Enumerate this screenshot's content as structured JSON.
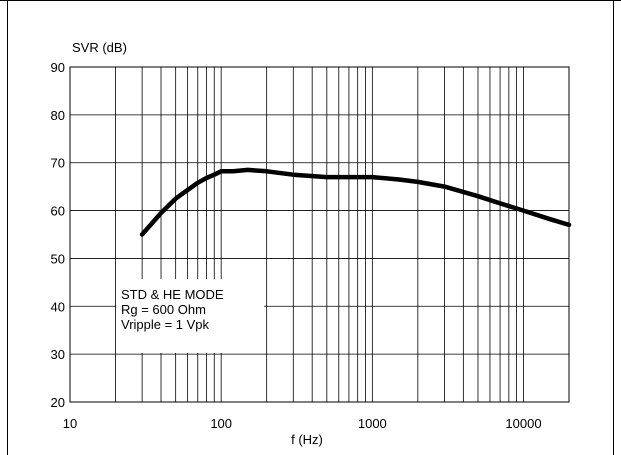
{
  "chart_data": {
    "type": "line",
    "ylabel": "SVR (dB)",
    "xlabel": "f (Hz)",
    "xscale": "log",
    "xlim": [
      10,
      20000
    ],
    "ylim": [
      20,
      90
    ],
    "x_ticks": [
      10,
      100,
      1000,
      10000
    ],
    "x_tick_labels": [
      "10",
      "100",
      "1000",
      "10000"
    ],
    "y_ticks": [
      20,
      30,
      40,
      50,
      60,
      70,
      80,
      90
    ],
    "y_tick_labels": [
      "20",
      "30",
      "40",
      "50",
      "60",
      "70",
      "80",
      "90"
    ],
    "grid": true,
    "annotation": [
      "STD & HE MODE",
      "Rg = 600 Ohm",
      "Vripple = 1 Vpk"
    ],
    "series": [
      {
        "x": [
          30,
          40,
          50,
          60,
          70,
          80,
          90,
          100,
          120,
          150,
          200,
          300,
          500,
          700,
          1000,
          1500,
          2000,
          3000,
          5000,
          7000,
          10000,
          15000,
          20000
        ],
        "y": [
          55.0,
          59.5,
          62.5,
          64.3,
          65.8,
          66.8,
          67.5,
          68.2,
          68.2,
          68.5,
          68.2,
          67.5,
          67.0,
          67.0,
          67.0,
          66.5,
          66.0,
          65.0,
          63.0,
          61.5,
          60.0,
          58.2,
          57.0
        ]
      }
    ],
    "colors": {
      "line": "#000000",
      "grid": "#000000",
      "background": "#ffffff"
    }
  }
}
